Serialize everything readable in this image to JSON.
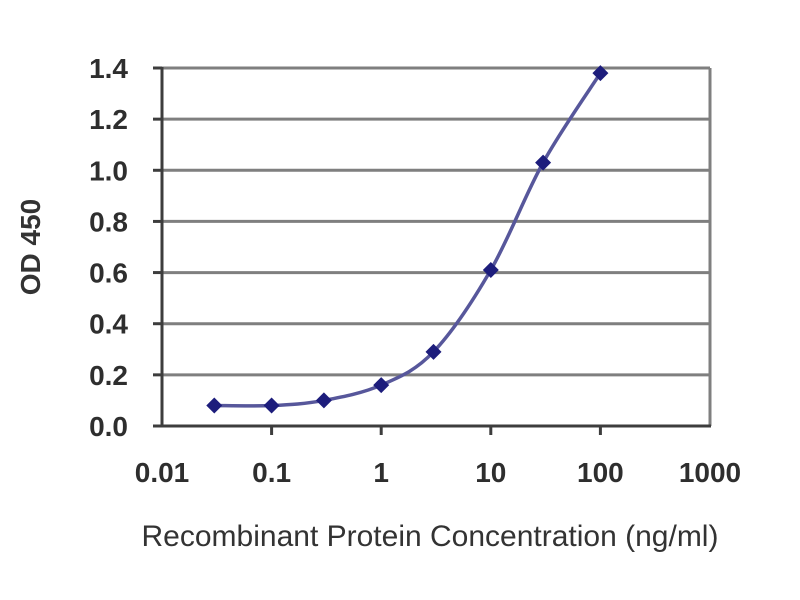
{
  "chart_data": {
    "type": "line",
    "title": "",
    "xlabel": "Recombinant Protein Concentration (ng/ml)",
    "ylabel": "OD 450",
    "x_scale": "log",
    "xlim": [
      0.01,
      1000
    ],
    "ylim": [
      0,
      1.4
    ],
    "x_ticks": [
      0.01,
      0.1,
      1,
      10,
      100,
      1000
    ],
    "x_tick_labels": [
      "0.01",
      "0.1",
      "1",
      "10",
      "100",
      "1000"
    ],
    "y_ticks": [
      0,
      0.2,
      0.4,
      0.6,
      0.8,
      1.0,
      1.2,
      1.4
    ],
    "y_tick_labels": [
      "0.0",
      "0.2",
      "0.4",
      "0.6",
      "0.8",
      "1.0",
      "1.2",
      "1.4"
    ],
    "grid": "horizontal",
    "legend": "none",
    "series": [
      {
        "name": "OD 450",
        "x": [
          0.03,
          0.1,
          0.3,
          1,
          3,
          10,
          30,
          100
        ],
        "y": [
          0.08,
          0.08,
          0.1,
          0.16,
          0.29,
          0.61,
          1.03,
          1.38
        ],
        "marker": "diamond",
        "smoothed": true
      }
    ],
    "colors": {
      "line": "#57579b",
      "marker": "#1d1d7c",
      "gridline": "#7f7f7f",
      "axis": "#3d3d3d",
      "text": "#333333",
      "background": "#ffffff"
    }
  }
}
